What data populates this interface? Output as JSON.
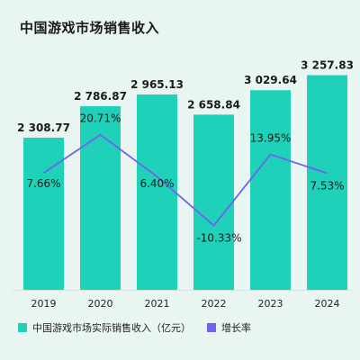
{
  "chart_data": {
    "type": "bar+line",
    "title": "中国游戏市场销售收入",
    "categories": [
      "2019",
      "2020",
      "2021",
      "2022",
      "2023",
      "2024"
    ],
    "series": [
      {
        "name": "中国游戏市场实际销售收入（亿元）",
        "kind": "bar",
        "values": [
          2308.77,
          2786.87,
          2965.13,
          2658.84,
          3029.64,
          3257.83
        ],
        "labels": [
          "2 308.77",
          "2 786.87",
          "2 965.13",
          "2 658.84",
          "3 029.64",
          "3 257.83"
        ]
      },
      {
        "name": "增长率",
        "kind": "line",
        "values": [
          7.66,
          20.71,
          6.4,
          -10.33,
          13.95,
          7.53
        ],
        "labels": [
          "7.66%",
          "20.71%",
          "6.40%",
          "-10.33%",
          "13.95%",
          "7.53%"
        ]
      }
    ],
    "colors": {
      "bar": "#1ed1b8",
      "line": "#6f63ee"
    },
    "grid": false,
    "legend_position": "bottom"
  }
}
